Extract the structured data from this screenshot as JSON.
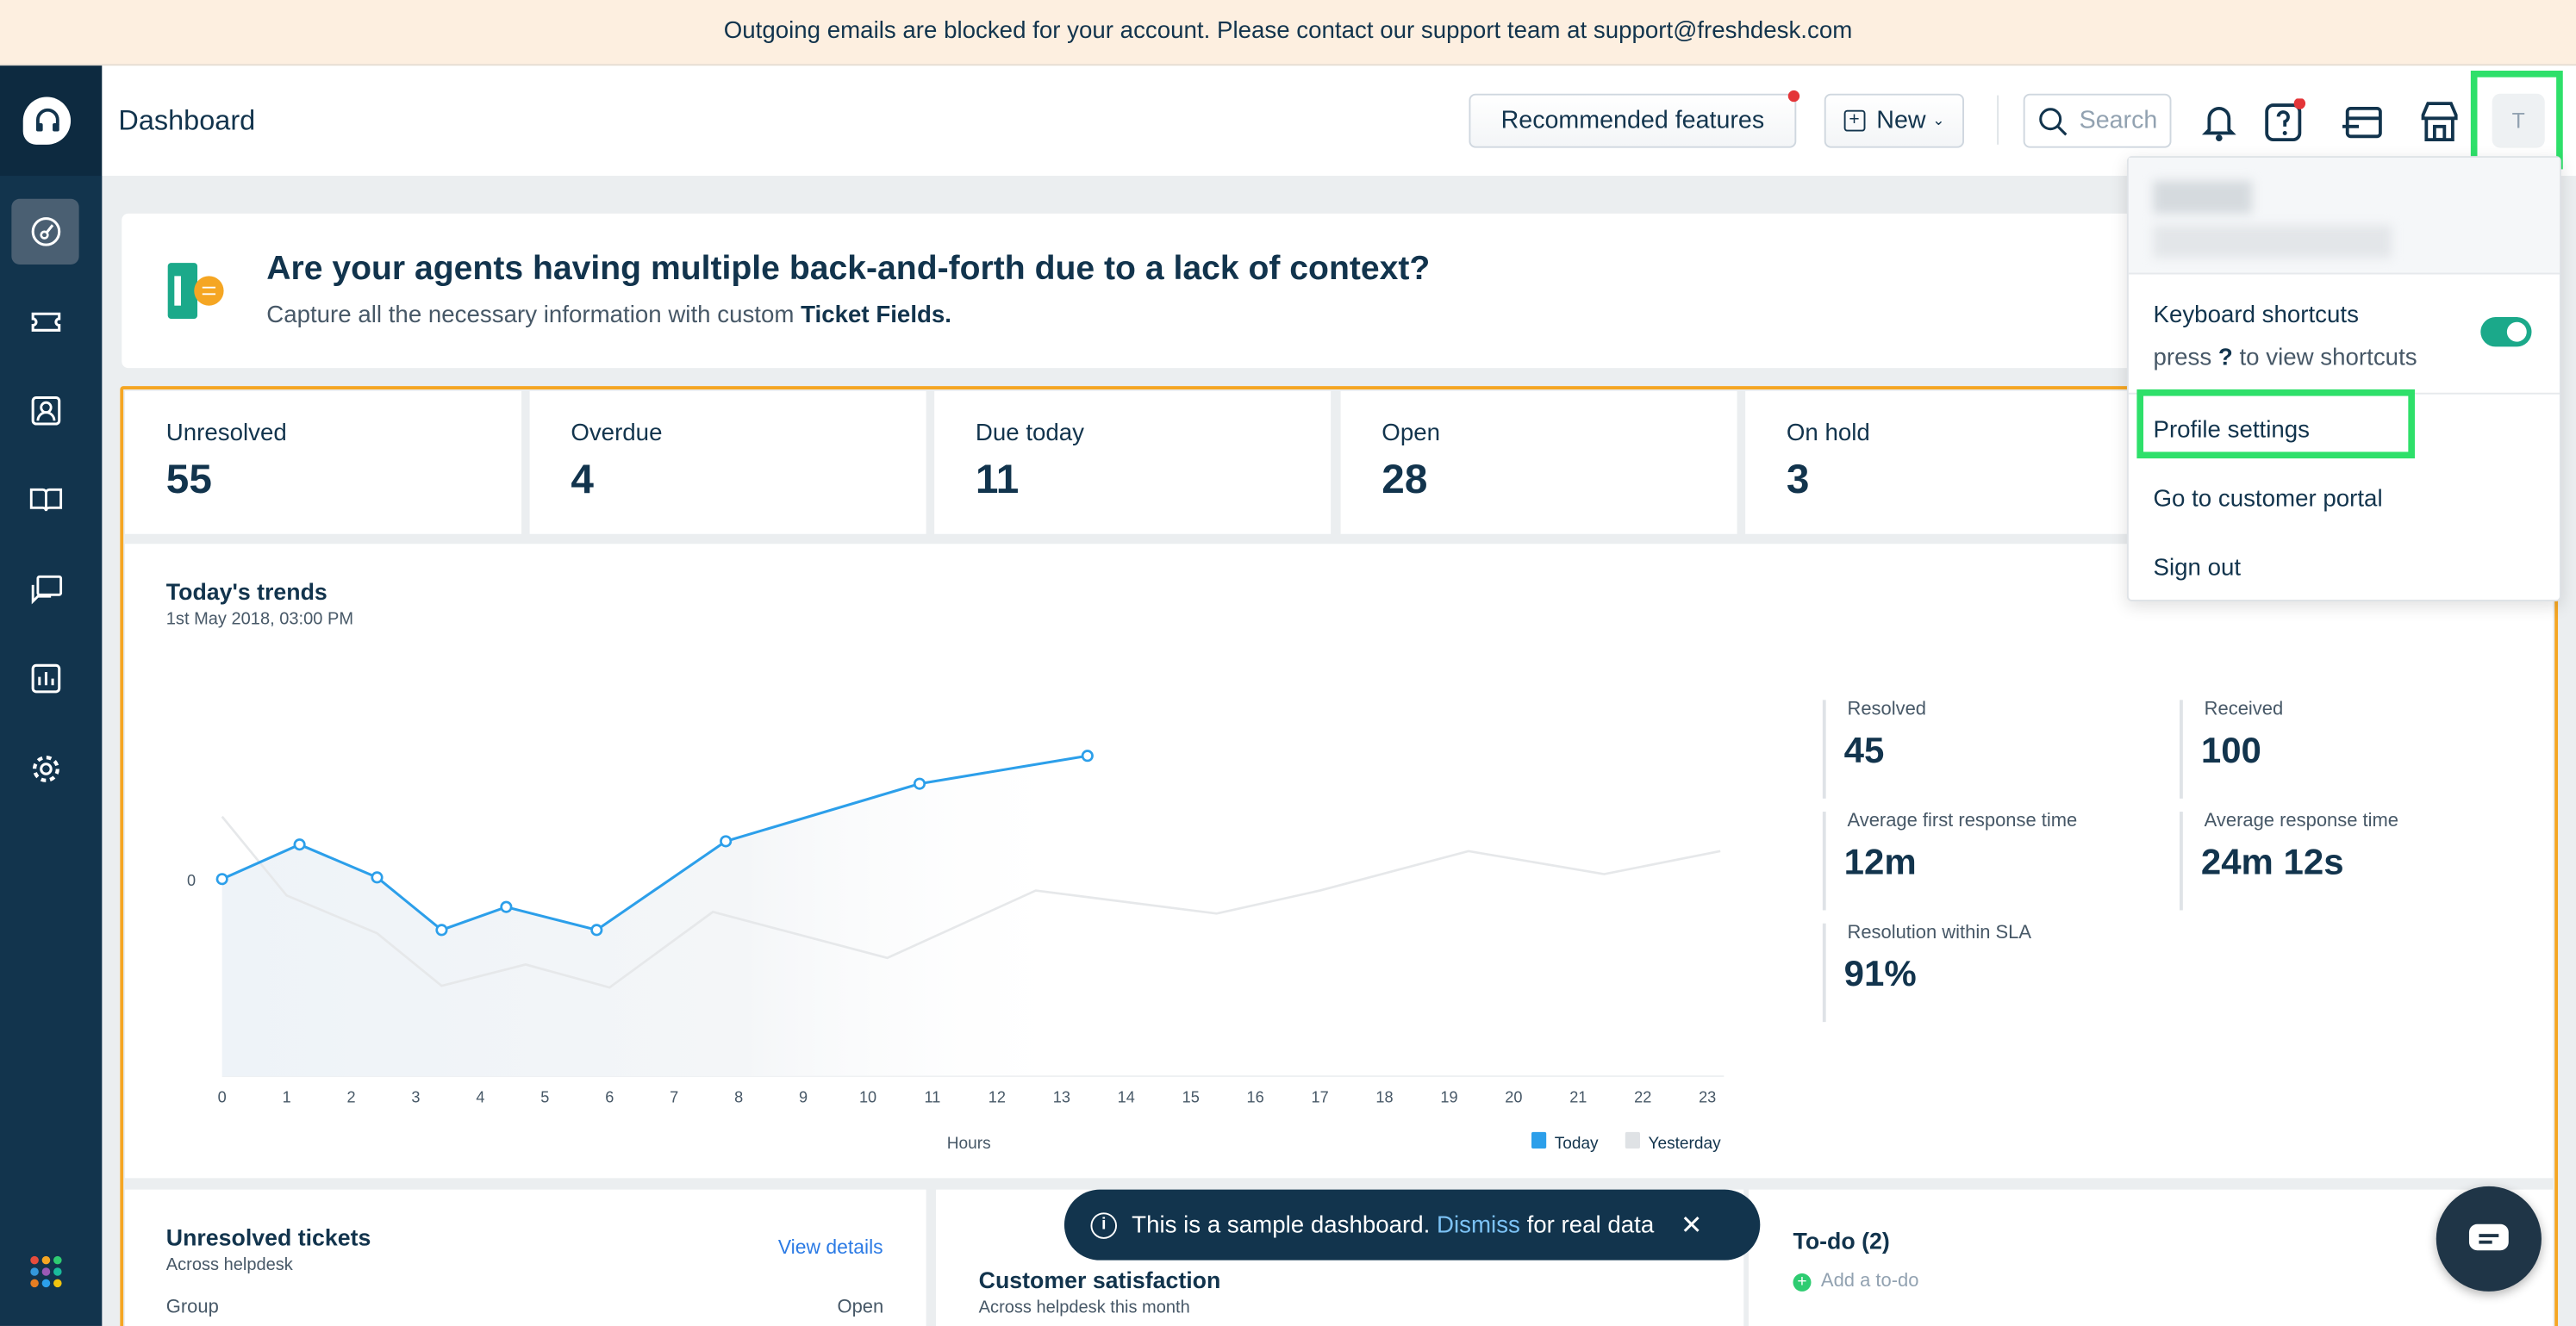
{
  "banner": {
    "text": "Outgoing emails are blocked for your account. Please contact our support team at support@freshdesk.com"
  },
  "header": {
    "title": "Dashboard",
    "recommended_label": "Recommended features",
    "new_label": "New",
    "search_placeholder": "Search",
    "avatar_initial": "T"
  },
  "sidebar": {
    "items": [
      {
        "icon": "dashboard-icon",
        "active": true
      },
      {
        "icon": "ticket-icon"
      },
      {
        "icon": "contacts-icon"
      },
      {
        "icon": "knowledge-base-icon"
      },
      {
        "icon": "forums-icon"
      },
      {
        "icon": "reports-icon"
      },
      {
        "icon": "gear-icon"
      }
    ]
  },
  "promo": {
    "title": "Are your agents having multiple back-and-forth due to a lack of context?",
    "text": "Capture all the necessary information with custom ",
    "bold": "Ticket Fields."
  },
  "stats": [
    {
      "label": "Unresolved",
      "value": "55"
    },
    {
      "label": "Overdue",
      "value": "4"
    },
    {
      "label": "Due today",
      "value": "11"
    },
    {
      "label": "Open",
      "value": "28"
    },
    {
      "label": "On hold",
      "value": "3"
    }
  ],
  "trends": {
    "title": "Today's trends",
    "subtitle": "1st May 2018, 03:00 PM",
    "metrics": [
      {
        "label": "Resolved",
        "value": "45"
      },
      {
        "label": "Received",
        "value": "100"
      },
      {
        "label": "Average first response time",
        "value": "12m"
      },
      {
        "label": "Average response time",
        "value": "24m 12s"
      },
      {
        "label": "Resolution within SLA",
        "value": "91%"
      }
    ]
  },
  "chart_data": {
    "type": "line",
    "xlabel": "Hours",
    "ylabel": "",
    "x_ticks": [
      "0",
      "1",
      "2",
      "3",
      "4",
      "5",
      "6",
      "7",
      "8",
      "9",
      "10",
      "11",
      "12",
      "13",
      "14",
      "15",
      "16",
      "17",
      "18",
      "19",
      "20",
      "21",
      "22",
      "23"
    ],
    "y_ticks": [
      "0"
    ],
    "legend": "bottom-right",
    "series": [
      {
        "name": "Today",
        "color": "#2c9fea",
        "points": [
          [
            0,
            0
          ],
          [
            1.2,
            2.1
          ],
          [
            2.4,
            0.1
          ],
          [
            3.4,
            -3.1
          ],
          [
            4.4,
            -1.7
          ],
          [
            5.8,
            -3.1
          ],
          [
            7.8,
            2.3
          ],
          [
            10.8,
            5.8
          ],
          [
            13.4,
            7.5
          ]
        ]
      },
      {
        "name": "Yesterday",
        "color": "#e6e8ea",
        "points": [
          [
            0,
            3.8
          ],
          [
            1,
            -1
          ],
          [
            2.4,
            -3.3
          ],
          [
            3.4,
            -6.5
          ],
          [
            4.7,
            -5.2
          ],
          [
            6,
            -6.6
          ],
          [
            7.6,
            -2
          ],
          [
            10.3,
            -4.8
          ],
          [
            12.6,
            -0.7
          ],
          [
            15.4,
            -2.1
          ],
          [
            17,
            -0.7
          ],
          [
            19.3,
            1.7
          ],
          [
            21.4,
            0.3
          ],
          [
            23.2,
            1.7
          ]
        ]
      }
    ]
  },
  "bottom": {
    "unresolved_title": "Unresolved tickets",
    "unresolved_sub": "Across helpdesk",
    "view_details": "View details",
    "group_col": "Group",
    "open_col": "Open",
    "customer_title": "Customer satisfaction",
    "customer_sub": "Across helpdesk this month",
    "todo_title": "To-do (2)",
    "todo_add": "Add a to-do"
  },
  "toast": {
    "text": "This is a sample dashboard.",
    "link": "Dismiss",
    "rest": "for real data"
  },
  "dropdown": {
    "keyboard_shortcuts": "Keyboard shortcuts",
    "press": "press ",
    "key": "?",
    "press_rest": " to view shortcuts",
    "shortcuts_enabled": true,
    "profile_settings": "Profile settings",
    "customer_portal": "Go to customer portal",
    "sign_out": "Sign out"
  }
}
